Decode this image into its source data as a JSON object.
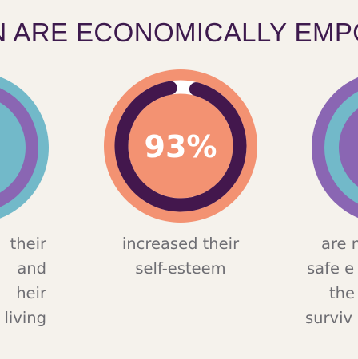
{
  "headline": "EN ARE ECONOMICALLY EMPOW",
  "colors": {
    "background": "#f5f2ec",
    "headline": "#3d1a4d",
    "body_text": "#6e6e73",
    "teal": "#72b9c9",
    "purple": "#8a66b3",
    "orange": "#f39272",
    "dark_purple": "#43174d",
    "white": "#ffffff"
  },
  "stats": [
    {
      "lines": [
        "their",
        "and",
        "heir",
        "living"
      ]
    },
    {
      "percent_label": "93%",
      "percent_value": 93,
      "lines": [
        "increased their",
        "self-esteem"
      ]
    },
    {
      "lines": [
        "are m",
        "safe e",
        "the",
        "surviv"
      ]
    }
  ]
}
